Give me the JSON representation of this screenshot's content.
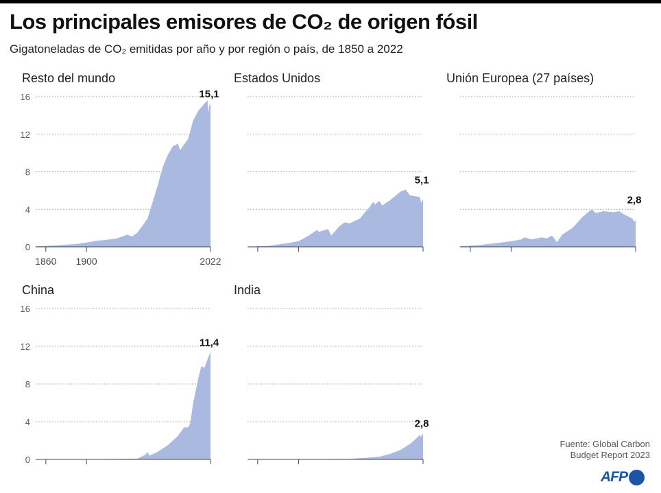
{
  "title": "Los principales emisores de CO₂ de origen fósil",
  "subtitle": "Gigatoneladas de CO₂ emitidas por año y por región o país, de 1850 a 2022",
  "source": [
    "Fuente: Global Carbon",
    "Budget Report 2023"
  ],
  "logo": "AFP",
  "colors": {
    "fill": "#aab9df",
    "grid": "#999999"
  },
  "chart_data": [
    {
      "type": "area",
      "title": "Resto del mundo",
      "ylim": [
        0,
        16
      ],
      "yticks": [
        0,
        4,
        8,
        12,
        16
      ],
      "xlim": [
        1850,
        2022
      ],
      "xticks": [
        1860,
        1900,
        2022
      ],
      "xtick_labels": [
        "1860",
        "1900",
        "2022"
      ],
      "last_label": "15,1",
      "x": [
        1850,
        1870,
        1890,
        1900,
        1910,
        1920,
        1930,
        1940,
        1945,
        1950,
        1960,
        1970,
        1975,
        1980,
        1985,
        1990,
        1992,
        2000,
        2005,
        2010,
        2018,
        2019,
        2020,
        2021,
        2022
      ],
      "y": [
        0.05,
        0.15,
        0.3,
        0.45,
        0.65,
        0.75,
        0.9,
        1.3,
        1.1,
        1.5,
        3.0,
        6.5,
        8.5,
        9.8,
        10.7,
        11.0,
        10.3,
        11.5,
        13.5,
        14.5,
        15.5,
        15.6,
        14.3,
        15.2,
        15.1
      ]
    },
    {
      "type": "area",
      "title": "Estados Unidos",
      "ylim": [
        0,
        16
      ],
      "yticks": [
        0,
        4,
        8,
        12,
        16
      ],
      "xlim": [
        1850,
        2022
      ],
      "xticks": [
        1860,
        1900,
        2022
      ],
      "xtick_labels": [],
      "last_label": "5,1",
      "x": [
        1850,
        1870,
        1890,
        1900,
        1910,
        1918,
        1920,
        1929,
        1932,
        1940,
        1945,
        1950,
        1960,
        1970,
        1973,
        1975,
        1979,
        1982,
        1990,
        2000,
        2005,
        2009,
        2019,
        2020,
        2022
      ],
      "y": [
        0.02,
        0.1,
        0.4,
        0.6,
        1.2,
        1.8,
        1.6,
        1.9,
        1.2,
        2.2,
        2.6,
        2.5,
        3.0,
        4.3,
        4.8,
        4.5,
        4.9,
        4.4,
        5.0,
        5.9,
        6.1,
        5.5,
        5.3,
        4.7,
        5.1
      ]
    },
    {
      "type": "area",
      "title": "Unión Europea (27 países)",
      "ylim": [
        0,
        16
      ],
      "yticks": [
        0,
        4,
        8,
        12,
        16
      ],
      "xlim": [
        1850,
        2022
      ],
      "xticks": [
        1860,
        1900,
        2022
      ],
      "xtick_labels": [],
      "last_label": "2,8",
      "x": [
        1850,
        1870,
        1890,
        1900,
        1910,
        1913,
        1920,
        1930,
        1935,
        1940,
        1945,
        1950,
        1960,
        1970,
        1979,
        1983,
        1990,
        2000,
        2006,
        2010,
        2019,
        2020,
        2022
      ],
      "y": [
        0.05,
        0.2,
        0.45,
        0.6,
        0.8,
        1.0,
        0.8,
        1.0,
        0.9,
        1.2,
        0.5,
        1.3,
        2.0,
        3.2,
        4.0,
        3.6,
        3.8,
        3.7,
        3.8,
        3.5,
        3.0,
        2.7,
        2.8
      ]
    },
    {
      "type": "area",
      "title": "China",
      "ylim": [
        0,
        16
      ],
      "yticks": [
        0,
        4,
        8,
        12,
        16
      ],
      "xlim": [
        1850,
        2022
      ],
      "xticks": [
        1860,
        1900,
        2022
      ],
      "xtick_labels": [],
      "last_label": "11,4",
      "x": [
        1850,
        1900,
        1930,
        1950,
        1958,
        1960,
        1962,
        1970,
        1980,
        1990,
        1996,
        2000,
        2002,
        2005,
        2010,
        2013,
        2016,
        2019,
        2022
      ],
      "y": [
        0,
        0.01,
        0.05,
        0.08,
        0.5,
        0.8,
        0.4,
        0.8,
        1.5,
        2.5,
        3.4,
        3.4,
        3.8,
        6.0,
        8.6,
        9.9,
        9.7,
        10.6,
        11.4
      ]
    },
    {
      "type": "area",
      "title": "India",
      "ylim": [
        0,
        16
      ],
      "yticks": [
        0,
        4,
        8,
        12,
        16
      ],
      "xlim": [
        1850,
        2022
      ],
      "xticks": [
        1860,
        1900,
        2022
      ],
      "xtick_labels": [],
      "last_label": "2,8",
      "x": [
        1850,
        1900,
        1950,
        1970,
        1980,
        1990,
        2000,
        2010,
        2019,
        2020,
        2022
      ],
      "y": [
        0,
        0.01,
        0.06,
        0.2,
        0.3,
        0.6,
        1.0,
        1.7,
        2.6,
        2.4,
        2.8
      ]
    }
  ]
}
